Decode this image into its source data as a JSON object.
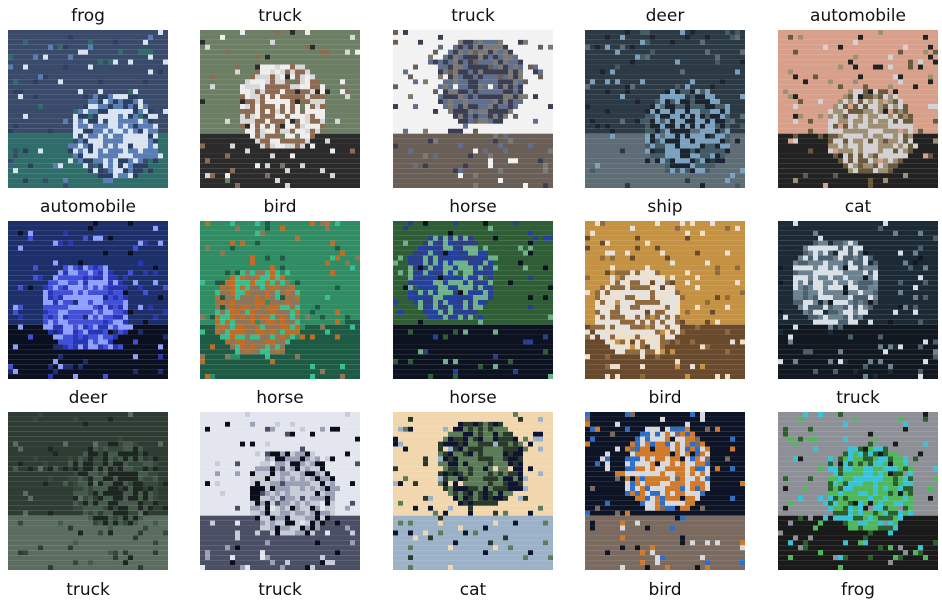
{
  "tiles": [
    {
      "label": "frog",
      "colors": [
        "#3a4a6a",
        "#2b3f63",
        "#5b7db6",
        "#d8e4ef",
        "#2f6d6a"
      ]
    },
    {
      "label": "truck",
      "colors": [
        "#6c7f64",
        "#d8d8d8",
        "#eeeeee",
        "#8d6a52",
        "#2b2b2b"
      ]
    },
    {
      "label": "truck",
      "colors": [
        "#f2f2f2",
        "#7d7a76",
        "#3b3d52",
        "#5f6f8c",
        "#6a5f56"
      ]
    },
    {
      "label": "deer",
      "colors": [
        "#2c3a45",
        "#445a65",
        "#7aa1bf",
        "#1c2430",
        "#5d6c75"
      ]
    },
    {
      "label": "automobile",
      "colors": [
        "#d8a08a",
        "#6a5a3d",
        "#d3d1d3",
        "#9e8f73",
        "#222222"
      ]
    },
    {
      "label": "automobile",
      "colors": [
        "#1d2f6a",
        "#2836b5",
        "#4050d8",
        "#8fa0ff",
        "#0b1020"
      ]
    },
    {
      "label": "bird",
      "colors": [
        "#2f8c63",
        "#36c08f",
        "#8f7558",
        "#c26b24",
        "#1e5b45"
      ]
    },
    {
      "label": "horse",
      "colors": [
        "#2f5e36",
        "#2b3f82",
        "#2440a0",
        "#6fb28a",
        "#0c1220"
      ]
    },
    {
      "label": "ship",
      "colors": [
        "#c49242",
        "#f0e0c8",
        "#8f6a3f",
        "#e6e2dd",
        "#6a4a2d"
      ]
    },
    {
      "label": "cat",
      "colors": [
        "#1c2a35",
        "#4c5f6e",
        "#6d8290",
        "#d9e0e6",
        "#121820"
      ]
    },
    {
      "label": "deer",
      "colors": [
        "#2e3c34",
        "#36473c",
        "#455a4b",
        "#1d2620",
        "#5a6d60"
      ]
    },
    {
      "label": "horse",
      "colors": [
        "#e3e6ee",
        "#0b0e1a",
        "#9aa0b5",
        "#c8ccd6",
        "#4a4f66"
      ]
    },
    {
      "label": "horse",
      "colors": [
        "#f2d7ae",
        "#0f1530",
        "#5c7c59",
        "#2a3a2a",
        "#9bb2c8"
      ]
    },
    {
      "label": "bird",
      "colors": [
        "#0d1426",
        "#2f6ec7",
        "#d07a2a",
        "#d7d9dd",
        "#7a6a60"
      ]
    },
    {
      "label": "truck",
      "colors": [
        "#8e9097",
        "#2b5f2b",
        "#50b85a",
        "#39c3d8",
        "#1a1a1a"
      ]
    },
    {
      "label": "truck"
    },
    {
      "label": "truck"
    },
    {
      "label": "cat"
    },
    {
      "label": "bird"
    },
    {
      "label": "frog"
    }
  ]
}
